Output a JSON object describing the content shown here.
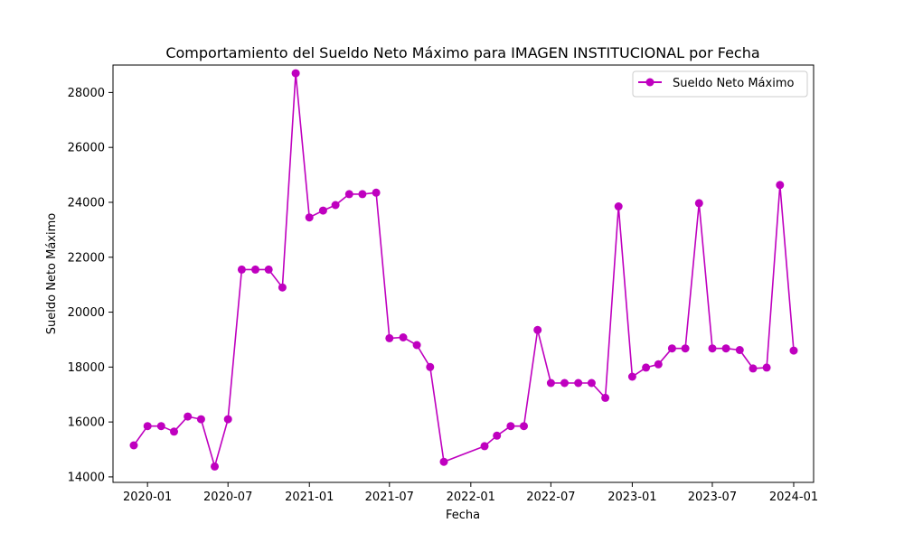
{
  "chart_data": {
    "type": "line",
    "title": "Comportamiento del Sueldo Neto Máximo para IMAGEN INSTITUCIONAL por Fecha",
    "xlabel": "Fecha",
    "ylabel": "Sueldo Neto Máximo",
    "xlim": [
      "2019-10-15",
      "2024-02-15"
    ],
    "ylim": [
      13800,
      29000
    ],
    "x_ticks": [
      "2020-01",
      "2020-07",
      "2021-01",
      "2021-07",
      "2022-01",
      "2022-07",
      "2023-01",
      "2023-07",
      "2024-01"
    ],
    "y_ticks": [
      14000,
      16000,
      18000,
      20000,
      22000,
      24000,
      26000,
      28000
    ],
    "legend": {
      "position": "top-right"
    },
    "grid": false,
    "series": [
      {
        "name": "Sueldo Neto Máximo",
        "color": "#bf00bf",
        "marker": "circle",
        "x": [
          "2019-12-01",
          "2020-01-01",
          "2020-02-01",
          "2020-03-01",
          "2020-04-01",
          "2020-05-01",
          "2020-06-01",
          "2020-07-01",
          "2020-08-01",
          "2020-09-01",
          "2020-10-01",
          "2020-11-01",
          "2020-12-01",
          "2021-01-01",
          "2021-02-01",
          "2021-03-01",
          "2021-04-01",
          "2021-05-01",
          "2021-06-01",
          "2021-07-01",
          "2021-08-01",
          "2021-09-01",
          "2021-10-01",
          "2021-11-01",
          "2022-02-01",
          "2022-03-01",
          "2022-04-01",
          "2022-05-01",
          "2022-06-01",
          "2022-07-01",
          "2022-08-01",
          "2022-09-01",
          "2022-10-01",
          "2022-11-01",
          "2022-12-01",
          "2023-01-01",
          "2023-02-01",
          "2023-03-01",
          "2023-04-01",
          "2023-05-01",
          "2023-06-01",
          "2023-07-01",
          "2023-08-01",
          "2023-09-01",
          "2023-10-01",
          "2023-11-01",
          "2023-12-01",
          "2024-01-01"
        ],
        "values": [
          15150,
          15850,
          15850,
          15650,
          16200,
          16100,
          14380,
          16100,
          21550,
          21550,
          21550,
          20900,
          28700,
          23450,
          23700,
          23900,
          24300,
          24300,
          24350,
          19050,
          19080,
          18800,
          18000,
          14550,
          15120,
          15500,
          15850,
          15850,
          19350,
          17420,
          17420,
          17420,
          17420,
          16880,
          23850,
          17650,
          17980,
          18100,
          18680,
          18680,
          23970,
          18680,
          18680,
          18620,
          17950,
          17980,
          24630,
          18600
        ]
      }
    ]
  }
}
